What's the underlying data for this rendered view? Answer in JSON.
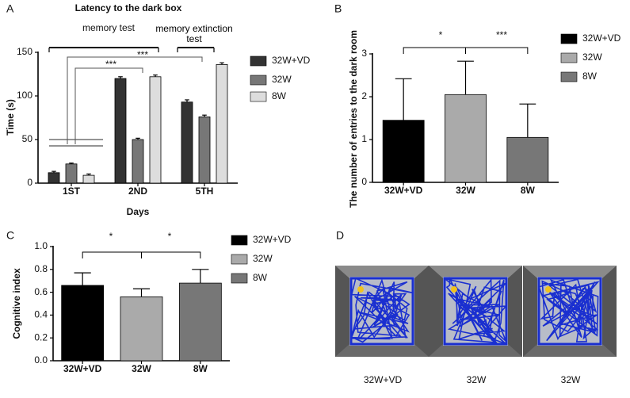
{
  "chart_data": [
    {
      "type": "bar",
      "panel": "A",
      "title": "Latency to the dark box",
      "ylabel": "Time (s)",
      "xlabel": "Days",
      "categories": [
        "1ST",
        "2ND",
        "5TH"
      ],
      "series": [
        {
          "name": "32W+VD",
          "color": "#333333",
          "values": [
            12,
            120,
            93
          ],
          "errors": [
            1.5,
            2,
            2.5
          ]
        },
        {
          "name": "32W",
          "color": "#777777",
          "values": [
            22,
            50,
            76
          ],
          "errors": [
            1,
            1.5,
            2
          ]
        },
        {
          "name": "8W",
          "color": "#dddddd",
          "values": [
            9,
            122,
            136
          ],
          "errors": [
            1.5,
            2,
            2
          ]
        }
      ],
      "ylim": [
        0,
        150
      ],
      "yticks": [
        0,
        50,
        100,
        150
      ],
      "annotations": [
        "memory test",
        "memory extinction test",
        "***",
        "***"
      ]
    },
    {
      "type": "bar",
      "panel": "B",
      "ylabel": "The number of entries to the dark room",
      "categories": [
        "32W+VD",
        "32W",
        "8W"
      ],
      "values": [
        1.45,
        2.05,
        1.05
      ],
      "errors": [
        0.97,
        0.78,
        0.78
      ],
      "colors": [
        "#000000",
        "#aaaaaa",
        "#777777"
      ],
      "ylim": [
        0,
        3
      ],
      "yticks": [
        0,
        1,
        2,
        3
      ],
      "annotations": [
        "*",
        "***"
      ]
    },
    {
      "type": "bar",
      "panel": "C",
      "ylabel": "Cognitive index",
      "categories": [
        "32W+VD",
        "32W",
        "8W"
      ],
      "values": [
        0.66,
        0.56,
        0.68
      ],
      "errors": [
        0.11,
        0.07,
        0.12
      ],
      "colors": [
        "#000000",
        "#aaaaaa",
        "#777777"
      ],
      "ylim": [
        0,
        1
      ],
      "yticks": [
        {
          "value": 0,
          "label": "0.0"
        },
        0.2,
        0.4,
        0.6,
        0.8,
        {
          "value": 1,
          "label": "1.0"
        }
      ],
      "annotations": [
        "*",
        "*"
      ]
    }
  ],
  "panel_d": {
    "panel": "D",
    "captions": [
      "32W+VD",
      "32W",
      "32W"
    ]
  }
}
